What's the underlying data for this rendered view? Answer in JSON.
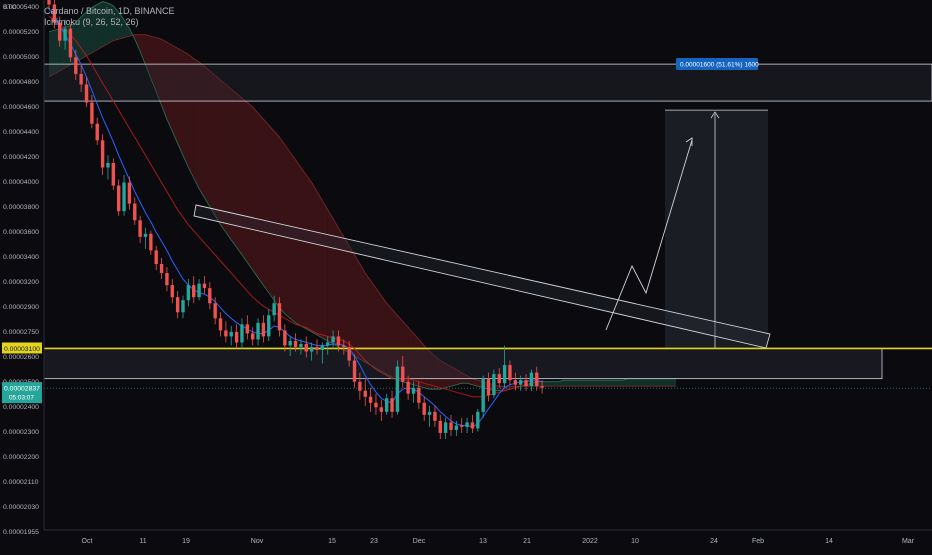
{
  "legend": {
    "symbol": "Cardano / Bitcoin, 1D, BINANCE",
    "indicator": "Ichimoku (9, 26, 52, 26)"
  },
  "currency_badge": "BTC",
  "chart_data": {
    "type": "candlestick",
    "title": "Cardano / Bitcoin, 1D, BINANCE",
    "xlabel": "",
    "ylabel": "",
    "ylim": [
      1.91e-05,
      5.41e-05
    ],
    "grid": false,
    "y_ticks": [
      "0.00005400",
      "0.00005200",
      "0.00005000",
      "0.00004800",
      "0.00004600",
      "0.00004400",
      "0.00004200",
      "0.00004000",
      "0.00003800",
      "0.00003600",
      "0.00003400",
      "0.00003200",
      "0.00002900",
      "0.00002750",
      "0.00002600",
      "0.00002500",
      "0.00002400",
      "0.00002300",
      "0.00002200",
      "0.00002110",
      "0.00002030",
      "0.00001955"
    ],
    "x_ticks": [
      "Oct",
      "11",
      "19",
      "Nov",
      "15",
      "23",
      "Dec",
      "13",
      "21",
      "2022",
      "10",
      "24",
      "Feb",
      "14",
      "Mar"
    ],
    "price_labels": {
      "resistance": "0.00003100",
      "current": "0.00002837",
      "current_sub": "05:03:07"
    },
    "target_label": "0.00001600 (51.61%) 1600",
    "candles": [
      [
        5.45e-05,
        5.53e-05,
        5.35e-05,
        5.38e-05
      ],
      [
        5.38e-05,
        5.42e-05,
        5.22e-05,
        5.26e-05
      ],
      [
        5.26e-05,
        5.3e-05,
        5.1e-05,
        5.14e-05
      ],
      [
        5.14e-05,
        5.28e-05,
        5.08e-05,
        5.22e-05
      ],
      [
        5.22e-05,
        5.25e-05,
        5e-05,
        5.03e-05
      ],
      [
        5.03e-05,
        5.08e-05,
        4.88e-05,
        4.92e-05
      ],
      [
        4.92e-05,
        4.98e-05,
        4.8e-05,
        4.85e-05
      ],
      [
        4.85e-05,
        4.9e-05,
        4.7e-05,
        4.73e-05
      ],
      [
        4.73e-05,
        4.78e-05,
        4.56e-05,
        4.59e-05
      ],
      [
        4.59e-05,
        4.63e-05,
        4.45e-05,
        4.48e-05
      ],
      [
        4.48e-05,
        4.52e-05,
        4.25e-05,
        4.3e-05
      ],
      [
        4.3e-05,
        4.38e-05,
        4.22e-05,
        4.33e-05
      ],
      [
        4.33e-05,
        4.36e-05,
        4.15e-05,
        4.18e-05
      ],
      [
        4.18e-05,
        4.22e-05,
        3.98e-05,
        4.01e-05
      ],
      [
        4.01e-05,
        4.25e-05,
        3.98e-05,
        4.2e-05
      ],
      [
        4.2e-05,
        4.24e-05,
        4.02e-05,
        4.06e-05
      ],
      [
        4.06e-05,
        4.1e-05,
        3.92e-05,
        3.95e-05
      ],
      [
        3.95e-05,
        3.98e-05,
        3.8e-05,
        3.84e-05
      ],
      [
        3.84e-05,
        3.9e-05,
        3.76e-05,
        3.86e-05
      ],
      [
        3.86e-05,
        3.88e-05,
        3.72e-05,
        3.75e-05
      ],
      [
        3.75e-05,
        3.78e-05,
        3.62e-05,
        3.66e-05
      ],
      [
        3.66e-05,
        3.7e-05,
        3.56e-05,
        3.6e-05
      ],
      [
        3.6e-05,
        3.64e-05,
        3.48e-05,
        3.52e-05
      ],
      [
        3.52e-05,
        3.56e-05,
        3.4e-05,
        3.44e-05
      ],
      [
        3.44e-05,
        3.48e-05,
        3.3e-05,
        3.34e-05
      ],
      [
        3.34e-05,
        3.45e-05,
        3.3e-05,
        3.42e-05
      ],
      [
        3.42e-05,
        3.56e-05,
        3.38e-05,
        3.52e-05
      ],
      [
        3.52e-05,
        3.58e-05,
        3.4e-05,
        3.44e-05
      ],
      [
        3.44e-05,
        3.56e-05,
        3.42e-05,
        3.53e-05
      ],
      [
        3.53e-05,
        3.58e-05,
        3.46e-05,
        3.5e-05
      ],
      [
        3.5e-05,
        3.54e-05,
        3.36e-05,
        3.4e-05
      ],
      [
        3.4e-05,
        3.44e-05,
        3.26e-05,
        3.3e-05
      ],
      [
        3.3e-05,
        3.34e-05,
        3.18e-05,
        3.22e-05
      ],
      [
        3.22e-05,
        3.28e-05,
        3.14e-05,
        3.18e-05
      ],
      [
        3.18e-05,
        3.25e-05,
        3.12e-05,
        3.21e-05
      ],
      [
        3.21e-05,
        3.26e-05,
        3.1e-05,
        3.14e-05
      ],
      [
        3.14e-05,
        3.3e-05,
        3.1e-05,
        3.26e-05
      ],
      [
        3.26e-05,
        3.32e-05,
        3.16e-05,
        3.2e-05
      ],
      [
        3.2e-05,
        3.24e-05,
        3.12e-05,
        3.16e-05
      ],
      [
        3.16e-05,
        3.3e-05,
        3.12e-05,
        3.27e-05
      ],
      [
        3.27e-05,
        3.32e-05,
        3.14e-05,
        3.18e-05
      ],
      [
        3.18e-05,
        3.36e-05,
        3.15e-05,
        3.32e-05
      ],
      [
        3.32e-05,
        3.45e-05,
        3.28e-05,
        3.4e-05
      ],
      [
        3.4e-05,
        3.44e-05,
        3.18e-05,
        3.22e-05
      ],
      [
        3.22e-05,
        3.26e-05,
        3.08e-05,
        3.12e-05
      ],
      [
        3.12e-05,
        3.18e-05,
        3.05e-05,
        3.15e-05
      ],
      [
        3.15e-05,
        3.2e-05,
        3.08e-05,
        3.11e-05
      ],
      [
        3.11e-05,
        3.16e-05,
        3.06e-05,
        3.13e-05
      ],
      [
        3.13e-05,
        3.18e-05,
        3.04e-05,
        3.08e-05
      ],
      [
        3.08e-05,
        3.14e-05,
        3.02e-05,
        3.11e-05
      ],
      [
        3.11e-05,
        3.16e-05,
        3.06e-05,
        3.09e-05
      ],
      [
        3.09e-05,
        3.14e-05,
        3e-05,
        3.12e-05
      ],
      [
        3.12e-05,
        3.18e-05,
        3.06e-05,
        3.14e-05
      ],
      [
        3.14e-05,
        3.22e-05,
        3.1e-05,
        3.18e-05
      ],
      [
        3.18e-05,
        3.22e-05,
        3.08e-05,
        3.12e-05
      ],
      [
        3.12e-05,
        3.16e-05,
        3.06e-05,
        3.11e-05
      ],
      [
        3.11e-05,
        3.15e-05,
        2.98e-05,
        3.02e-05
      ],
      [
        3.02e-05,
        3.06e-05,
        2.84e-05,
        2.88e-05
      ],
      [
        2.88e-05,
        2.94e-05,
        2.76e-05,
        2.82e-05
      ],
      [
        2.82e-05,
        2.9e-05,
        2.72e-05,
        2.78e-05
      ],
      [
        2.78e-05,
        2.84e-05,
        2.68e-05,
        2.74e-05
      ],
      [
        2.74e-05,
        2.8e-05,
        2.66e-05,
        2.71e-05
      ],
      [
        2.71e-05,
        2.76e-05,
        2.62e-05,
        2.68e-05
      ],
      [
        2.68e-05,
        2.8e-05,
        2.66e-05,
        2.77e-05
      ],
      [
        2.77e-05,
        2.82e-05,
        2.64e-05,
        2.68e-05
      ],
      [
        2.68e-05,
        3.02e-05,
        2.66e-05,
        2.98e-05
      ],
      [
        2.98e-05,
        3.05e-05,
        2.84e-05,
        2.88e-05
      ],
      [
        2.88e-05,
        2.92e-05,
        2.76e-05,
        2.8e-05
      ],
      [
        2.8e-05,
        2.88e-05,
        2.74e-05,
        2.84e-05
      ],
      [
        2.84e-05,
        2.88e-05,
        2.7e-05,
        2.74e-05
      ],
      [
        2.74e-05,
        2.78e-05,
        2.62e-05,
        2.66e-05
      ],
      [
        2.66e-05,
        2.72e-05,
        2.58e-05,
        2.68e-05
      ],
      [
        2.68e-05,
        2.72e-05,
        2.58e-05,
        2.62e-05
      ],
      [
        2.62e-05,
        2.66e-05,
        2.5e-05,
        2.54e-05
      ],
      [
        2.54e-05,
        2.64e-05,
        2.5e-05,
        2.61e-05
      ],
      [
        2.61e-05,
        2.66e-05,
        2.52e-05,
        2.56e-05
      ],
      [
        2.56e-05,
        2.62e-05,
        2.52e-05,
        2.59e-05
      ],
      [
        2.59e-05,
        2.64e-05,
        2.54e-05,
        2.58e-05
      ],
      [
        2.58e-05,
        2.64e-05,
        2.54e-05,
        2.61e-05
      ],
      [
        2.61e-05,
        2.66e-05,
        2.54e-05,
        2.57e-05
      ],
      [
        2.57e-05,
        2.7e-05,
        2.55e-05,
        2.68e-05
      ],
      [
        2.68e-05,
        2.92e-05,
        2.64e-05,
        2.9e-05
      ],
      [
        2.9e-05,
        2.94e-05,
        2.75e-05,
        2.79e-05
      ],
      [
        2.79e-05,
        2.96e-05,
        2.77e-05,
        2.93e-05
      ],
      [
        2.93e-05,
        2.97e-05,
        2.84e-05,
        2.87e-05
      ],
      [
        2.87e-05,
        3.12e-05,
        2.84e-05,
        2.99e-05
      ],
      [
        2.99e-05,
        3.02e-05,
        2.86e-05,
        2.89e-05
      ],
      [
        2.89e-05,
        2.94e-05,
        2.82e-05,
        2.86e-05
      ],
      [
        2.86e-05,
        2.92e-05,
        2.82e-05,
        2.89e-05
      ],
      [
        2.89e-05,
        2.93e-05,
        2.82e-05,
        2.85e-05
      ],
      [
        2.85e-05,
        2.96e-05,
        2.82e-05,
        2.94e-05
      ],
      [
        2.94e-05,
        2.98e-05,
        2.82e-05,
        2.85e-05
      ],
      [
        2.85e-05,
        2.89e-05,
        2.8e-05,
        2.84e-05
      ]
    ],
    "tenkan": [
      5.35e-05,
      5.31e-05,
      5.24e-05,
      5.18e-05,
      5.12e-05,
      5.05e-05,
      4.98e-05,
      4.9e-05,
      4.81e-05,
      4.72e-05,
      4.63e-05,
      4.55e-05,
      4.47e-05,
      4.38e-05,
      4.3e-05,
      4.22e-05,
      4.14e-05,
      4.07e-05,
      4e-05,
      3.94e-05,
      3.87e-05,
      3.81e-05,
      3.75e-05,
      3.68e-05,
      3.62e-05,
      3.56e-05,
      3.52e-05,
      3.49e-05,
      3.47e-05,
      3.46e-05,
      3.44e-05,
      3.41e-05,
      3.37e-05,
      3.33e-05,
      3.3e-05,
      3.27e-05,
      3.25e-05,
      3.23e-05,
      3.21e-05,
      3.2e-05,
      3.2e-05,
      3.22e-05,
      3.25e-05,
      3.24e-05,
      3.21e-05,
      3.18e-05,
      3.16e-05,
      3.15e-05,
      3.14e-05,
      3.13e-05,
      3.12e-05,
      3.12e-05,
      3.12e-05,
      3.13e-05,
      3.13e-05,
      3.12e-05,
      3.1e-05,
      3.05e-05,
      2.99e-05,
      2.92e-05,
      2.86e-05,
      2.81e-05,
      2.77e-05,
      2.75e-05,
      2.74e-05,
      2.8e-05,
      2.83e-05,
      2.84e-05,
      2.83e-05,
      2.81e-05,
      2.78e-05,
      2.75e-05,
      2.72e-05,
      2.68e-05,
      2.65e-05,
      2.62e-05,
      2.6e-05,
      2.59e-05,
      2.59e-05,
      2.58e-05,
      2.6e-05,
      2.65e-05,
      2.7e-05,
      2.75e-05,
      2.8e-05,
      2.84e-05,
      2.86e-05,
      2.87e-05,
      2.88e-05,
      2.88e-05,
      2.89e-05,
      2.89e-05,
      2.88e-05
    ],
    "kijun": [
      5.3e-05,
      5.28e-05,
      5.25e-05,
      5.22e-05,
      5.18e-05,
      5.14e-05,
      5.09e-05,
      5.04e-05,
      4.98e-05,
      4.92e-05,
      4.86e-05,
      4.8e-05,
      4.74e-05,
      4.68e-05,
      4.62e-05,
      4.56e-05,
      4.5e-05,
      4.44e-05,
      4.38e-05,
      4.32e-05,
      4.26e-05,
      4.2e-05,
      4.14e-05,
      4.08e-05,
      4.02e-05,
      3.97e-05,
      3.92e-05,
      3.88e-05,
      3.84e-05,
      3.8e-05,
      3.76e-05,
      3.72e-05,
      3.68e-05,
      3.64e-05,
      3.6e-05,
      3.56e-05,
      3.52e-05,
      3.48e-05,
      3.44e-05,
      3.41e-05,
      3.38e-05,
      3.36e-05,
      3.34e-05,
      3.32e-05,
      3.3e-05,
      3.28e-05,
      3.26e-05,
      3.25e-05,
      3.24e-05,
      3.22e-05,
      3.2e-05,
      3.19e-05,
      3.18e-05,
      3.17e-05,
      3.16e-05,
      3.15e-05,
      3.13e-05,
      3.1e-05,
      3.06e-05,
      3.02e-05,
      2.99e-05,
      2.96e-05,
      2.94e-05,
      2.92e-05,
      2.9e-05,
      2.9e-05,
      2.9e-05,
      2.9e-05,
      2.89e-05,
      2.88e-05,
      2.87e-05,
      2.86e-05,
      2.85e-05,
      2.84e-05,
      2.83e-05,
      2.82e-05,
      2.81e-05,
      2.8e-05,
      2.79e-05,
      2.78e-05,
      2.78e-05,
      2.78e-05,
      2.79e-05,
      2.8e-05,
      2.81e-05,
      2.82e-05,
      2.83e-05,
      2.84e-05,
      2.85e-05,
      2.86e-05,
      2.87e-05,
      2.88e-05,
      2.88e-05
    ],
    "span_a": [
      5.2e-05,
      5.21e-05,
      5.22e-05,
      5.23e-05,
      5.24e-05,
      5.26e-05,
      5.3e-05,
      5.33e-05,
      5.36e-05,
      5.38e-05,
      5.4e-05,
      5.39e-05,
      5.37e-05,
      5.33e-05,
      5.28e-05,
      5.22e-05,
      5.15e-05,
      5.07e-05,
      4.98e-05,
      4.89e-05,
      4.8e-05,
      4.71e-05,
      4.62e-05,
      4.54e-05,
      4.46e-05,
      4.38e-05,
      4.3e-05,
      4.23e-05,
      4.16e-05,
      4.1e-05,
      4.04e-05,
      3.98e-05,
      3.92e-05,
      3.87e-05,
      3.82e-05,
      3.77e-05,
      3.72e-05,
      3.67e-05,
      3.62e-05,
      3.57e-05,
      3.52e-05,
      3.47e-05,
      3.42e-05,
      3.37e-05,
      3.33e-05,
      3.3e-05,
      3.27e-05,
      3.25e-05,
      3.23e-05,
      3.21e-05,
      3.19e-05,
      3.17e-05,
      3.15e-05,
      3.13e-05,
      3.11e-05,
      3.09e-05,
      3.07e-05,
      3.05e-05,
      3.03e-05,
      3.01e-05,
      2.99e-05,
      2.97e-05,
      2.95e-05,
      2.93e-05,
      2.91e-05,
      2.89e-05,
      2.88e-05,
      2.87e-05,
      2.86e-05,
      2.85e-05,
      2.84e-05,
      2.83e-05,
      2.83e-05,
      2.83e-05,
      2.84e-05,
      2.85e-05,
      2.86e-05,
      2.87e-05,
      2.87e-05,
      2.86e-05,
      2.85e-05,
      2.84e-05,
      2.83e-05,
      2.82e-05,
      2.82e-05,
      2.82e-05,
      2.83e-05,
      2.84e-05,
      2.85e-05,
      2.86e-05,
      2.87e-05,
      2.88e-05,
      2.88e-05,
      2.88e-05,
      2.88e-05,
      2.88e-05,
      2.89e-05,
      2.89e-05,
      2.89e-05,
      2.89e-05,
      2.89e-05,
      2.89e-05,
      2.89e-05,
      2.89e-05,
      2.89e-05,
      2.89e-05,
      2.89e-05,
      2.89e-05,
      2.9e-05,
      2.9e-05,
      2.9e-05,
      2.9e-05,
      2.9e-05,
      2.9e-05,
      2.9e-05,
      2.9e-05,
      2.9e-05,
      2.9e-05
    ],
    "span_b": [
      4.9e-05,
      4.92e-05,
      4.94e-05,
      4.96e-05,
      4.98e-05,
      5e-05,
      5.02e-05,
      5.04e-05,
      5.06e-05,
      5.08e-05,
      5.1e-05,
      5.12e-05,
      5.14e-05,
      5.15e-05,
      5.16e-05,
      5.17e-05,
      5.18e-05,
      5.18e-05,
      5.18e-05,
      5.17e-05,
      5.16e-05,
      5.15e-05,
      5.13e-05,
      5.11e-05,
      5.09e-05,
      5.07e-05,
      5.05e-05,
      5.02e-05,
      5e-05,
      4.97e-05,
      4.94e-05,
      4.91e-05,
      4.88e-05,
      4.85e-05,
      4.82e-05,
      4.79e-05,
      4.76e-05,
      4.73e-05,
      4.7e-05,
      4.66e-05,
      4.62e-05,
      4.58e-05,
      4.54e-05,
      4.5e-05,
      4.45e-05,
      4.4e-05,
      4.35e-05,
      4.3e-05,
      4.25e-05,
      4.2e-05,
      4.14e-05,
      4.08e-05,
      4.02e-05,
      3.96e-05,
      3.9e-05,
      3.84e-05,
      3.78e-05,
      3.72e-05,
      3.66e-05,
      3.6e-05,
      3.55e-05,
      3.5e-05,
      3.45e-05,
      3.4e-05,
      3.36e-05,
      3.32e-05,
      3.28e-05,
      3.24e-05,
      3.2e-05,
      3.16e-05,
      3.12e-05,
      3.08e-05,
      3.05e-05,
      3.02e-05,
      3e-05,
      2.98e-05,
      2.96e-05,
      2.94e-05,
      2.92e-05,
      2.9e-05,
      2.89e-05,
      2.88e-05,
      2.87e-05,
      2.86e-05,
      2.85e-05,
      2.85e-05,
      2.85e-05,
      2.85e-05,
      2.85e-05,
      2.85e-05,
      2.85e-05,
      2.85e-05,
      2.85e-05,
      2.85e-05,
      2.85e-05,
      2.85e-05,
      2.85e-05,
      2.85e-05,
      2.85e-05,
      2.85e-05,
      2.85e-05,
      2.85e-05,
      2.85e-05,
      2.85e-05,
      2.85e-05,
      2.85e-05,
      2.85e-05,
      2.85e-05,
      2.85e-05,
      2.85e-05,
      2.85e-05,
      2.85e-05,
      2.85e-05,
      2.85e-05,
      2.85e-05,
      2.85e-05,
      2.85e-05,
      2.85e-05
    ]
  },
  "colors": {
    "background": "#0b0b0f",
    "up": "#26a69a",
    "down": "#ef5350",
    "tenkan": "#2962ff",
    "kijun": "#b71c1c",
    "cloud_bull": "#1b5e4a",
    "cloud_bear": "#7a1c22",
    "resistance": "#e5d51a",
    "current": "#26a69a",
    "target_box": "#1565c0",
    "text": "#b2b5be",
    "drawing": "#d1d4dc"
  }
}
